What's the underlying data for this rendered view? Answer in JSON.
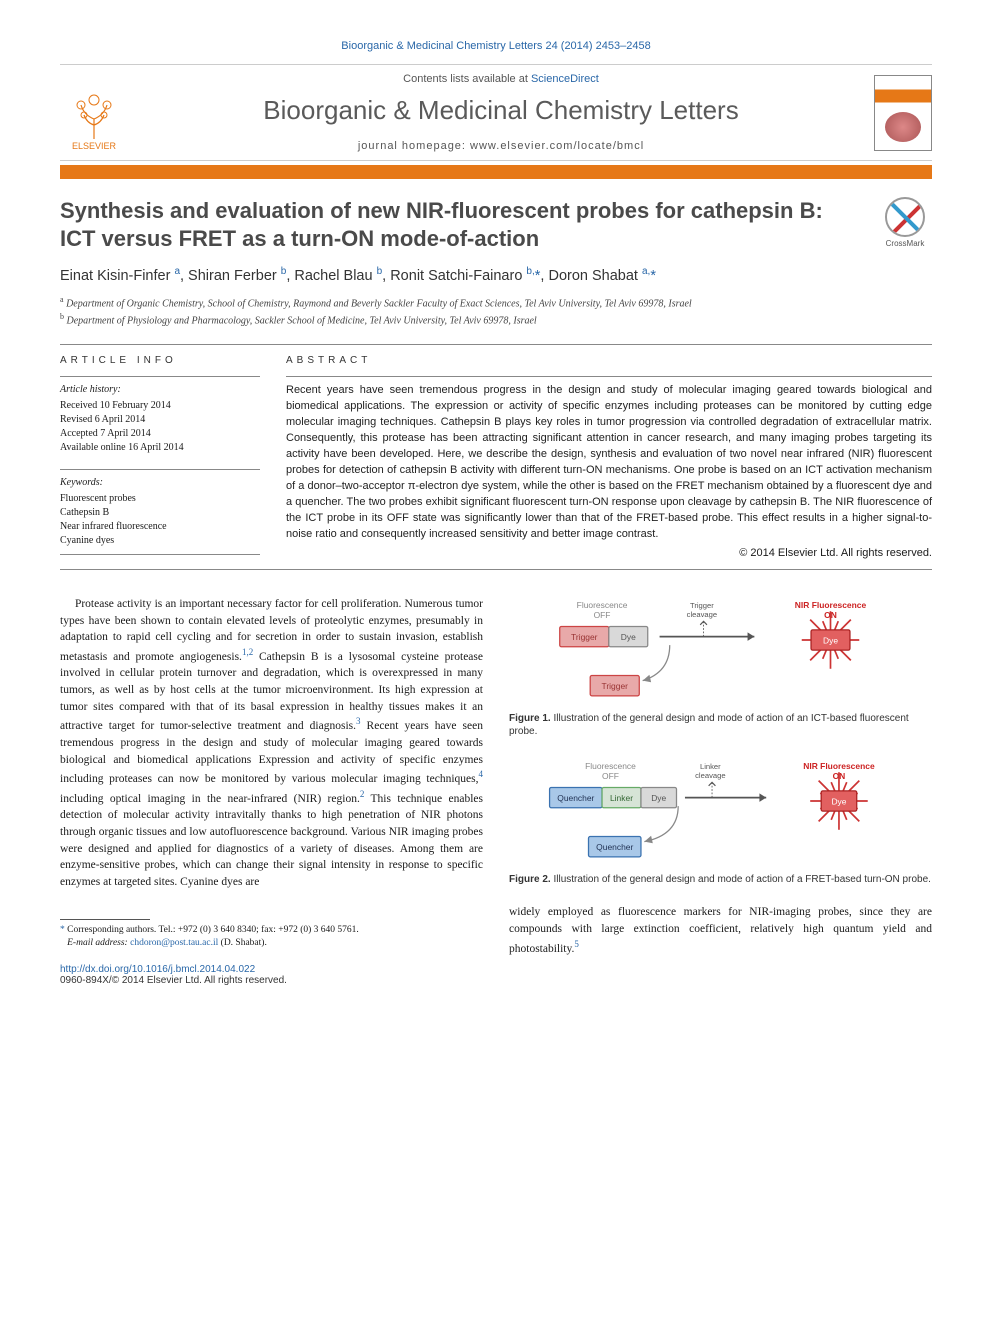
{
  "citation": "Bioorganic & Medicinal Chemistry Letters 24 (2014) 2453–2458",
  "header": {
    "contents_prefix": "Contents lists available at ",
    "contents_link": "ScienceDirect",
    "journal_name": "Bioorganic & Medicinal Chemistry Letters",
    "homepage_label": "journal homepage: www.elsevier.com/locate/bmcl",
    "publisher": "ELSEVIER"
  },
  "crossmark_label": "CrossMark",
  "title": "Synthesis and evaluation of new NIR-fluorescent probes for cathepsin B: ICT versus FRET as a turn-ON mode-of-action",
  "authors_html": "Einat Kisin-Finfer <sup>a</sup>, Shiran Ferber <sup>b</sup>, Rachel Blau <sup>b</sup>, Ronit Satchi-Fainaro <sup>b,</sup><span class='star'>*</span>, Doron Shabat <sup>a,</sup><span class='star'>*</span>",
  "affiliations": [
    {
      "sup": "a",
      "text": "Department of Organic Chemistry, School of Chemistry, Raymond and Beverly Sackler Faculty of Exact Sciences, Tel Aviv University, Tel Aviv 69978, Israel"
    },
    {
      "sup": "b",
      "text": "Department of Physiology and Pharmacology, Sackler School of Medicine, Tel Aviv University, Tel Aviv 69978, Israel"
    }
  ],
  "info_heading": "ARTICLE INFO",
  "abstract_heading": "ABSTRACT",
  "history": {
    "label": "Article history:",
    "lines": [
      "Received 10 February 2014",
      "Revised 6 April 2014",
      "Accepted 7 April 2014",
      "Available online 16 April 2014"
    ]
  },
  "keywords": {
    "label": "Keywords:",
    "items": [
      "Fluorescent probes",
      "Cathepsin B",
      "Near infrared fluorescence",
      "Cyanine dyes"
    ]
  },
  "abstract": "Recent years have seen tremendous progress in the design and study of molecular imaging geared towards biological and biomedical applications. The expression or activity of specific enzymes including proteases can be monitored by cutting edge molecular imaging techniques. Cathepsin B plays key roles in tumor progression via controlled degradation of extracellular matrix. Consequently, this protease has been attracting significant attention in cancer research, and many imaging probes targeting its activity have been developed. Here, we describe the design, synthesis and evaluation of two novel near infrared (NIR) fluorescent probes for detection of cathepsin B activity with different turn-ON mechanisms. One probe is based on an ICT activation mechanism of a donor–two-acceptor π-electron dye system, while the other is based on the FRET mechanism obtained by a fluorescent dye and a quencher. The two probes exhibit significant fluorescent turn-ON response upon cleavage by cathepsin B. The NIR fluorescence of the ICT probe in its OFF state was significantly lower than that of the FRET-based probe. This effect results in a higher signal-to-noise ratio and consequently increased sensitivity and better image contrast.",
  "copyright": "© 2014 Elsevier Ltd. All rights reserved.",
  "body_para": "Protease activity is an important necessary factor for cell proliferation. Numerous tumor types have been shown to contain elevated levels of proteolytic enzymes, presumably in adaptation to rapid cell cycling and for secretion in order to sustain invasion, establish metastasis and promote angiogenesis.<sup>1,2</sup> Cathepsin B is a lysosomal cysteine protease involved in cellular protein turnover and degradation, which is overexpressed in many tumors, as well as by host cells at the tumor microenvironment. Its high expression at tumor sites compared with that of its basal expression in healthy tissues makes it an attractive target for tumor-selective treatment and diagnosis.<sup>3</sup> Recent years have seen tremendous progress in the design and study of molecular imaging geared towards biological and biomedical applications Expression and activity of specific enzymes including proteases can now be monitored by various molecular imaging techniques,<sup>4</sup> including optical imaging in the near-infrared (NIR) region.<sup>2</sup> This technique enables detection of molecular activity intravitally thanks to high penetration of NIR photons through organic tissues and low autofluorescence background. Various NIR imaging probes were designed and applied for diagnostics of a variety of diseases. Among them are enzyme-sensitive probes, which can change their signal intensity in response to specific enzymes at targeted sites. Cyanine dyes are",
  "right_col_tail": "widely employed as fluorescence markers for NIR-imaging probes, since they are compounds with large extinction coefficient, relatively high quantum yield and photostability.<sup>5</sup>",
  "figure1": {
    "off_label": "Fluorescence\nOFF",
    "on_label": "NIR Fluorescence\nON",
    "trigger": "Trigger",
    "dye": "Dye",
    "cleave": "Trigger\ncleavage",
    "caption_bold": "Figure 1.",
    "caption": " Illustration of the general design and mode of action of an ICT-based fluorescent probe.",
    "colors": {
      "trigger": "#e8a9a9",
      "dye_off": "#d9d9d9",
      "dye_on": "#e26060",
      "arrow": "#555"
    }
  },
  "figure2": {
    "off_label": "Fluorescence\nOFF",
    "on_label": "NIR Fluorescence\nON",
    "quencher": "Quencher",
    "linker": "Linker",
    "dye": "Dye",
    "cleave": "Linker\ncleavage",
    "caption_bold": "Figure 2.",
    "caption": " Illustration of the general design and mode of action of a FRET-based turn-ON probe.",
    "colors": {
      "quencher": "#a9c8e8",
      "linker": "#d6e4d6",
      "dye_off": "#d9d9d9",
      "dye_on": "#e26060"
    }
  },
  "footnote": {
    "marker": "*",
    "text": " Corresponding authors. Tel.: +972 (0) 3 640 8340; fax: +972 (0) 3 640 5761.",
    "email_label": "E-mail address:",
    "email": "chdoron@post.tau.ac.il",
    "email_tail": " (D. Shabat)."
  },
  "doi": "http://dx.doi.org/10.1016/j.bmcl.2014.04.022",
  "issn": "0960-894X/© 2014 Elsevier Ltd. All rights reserved."
}
